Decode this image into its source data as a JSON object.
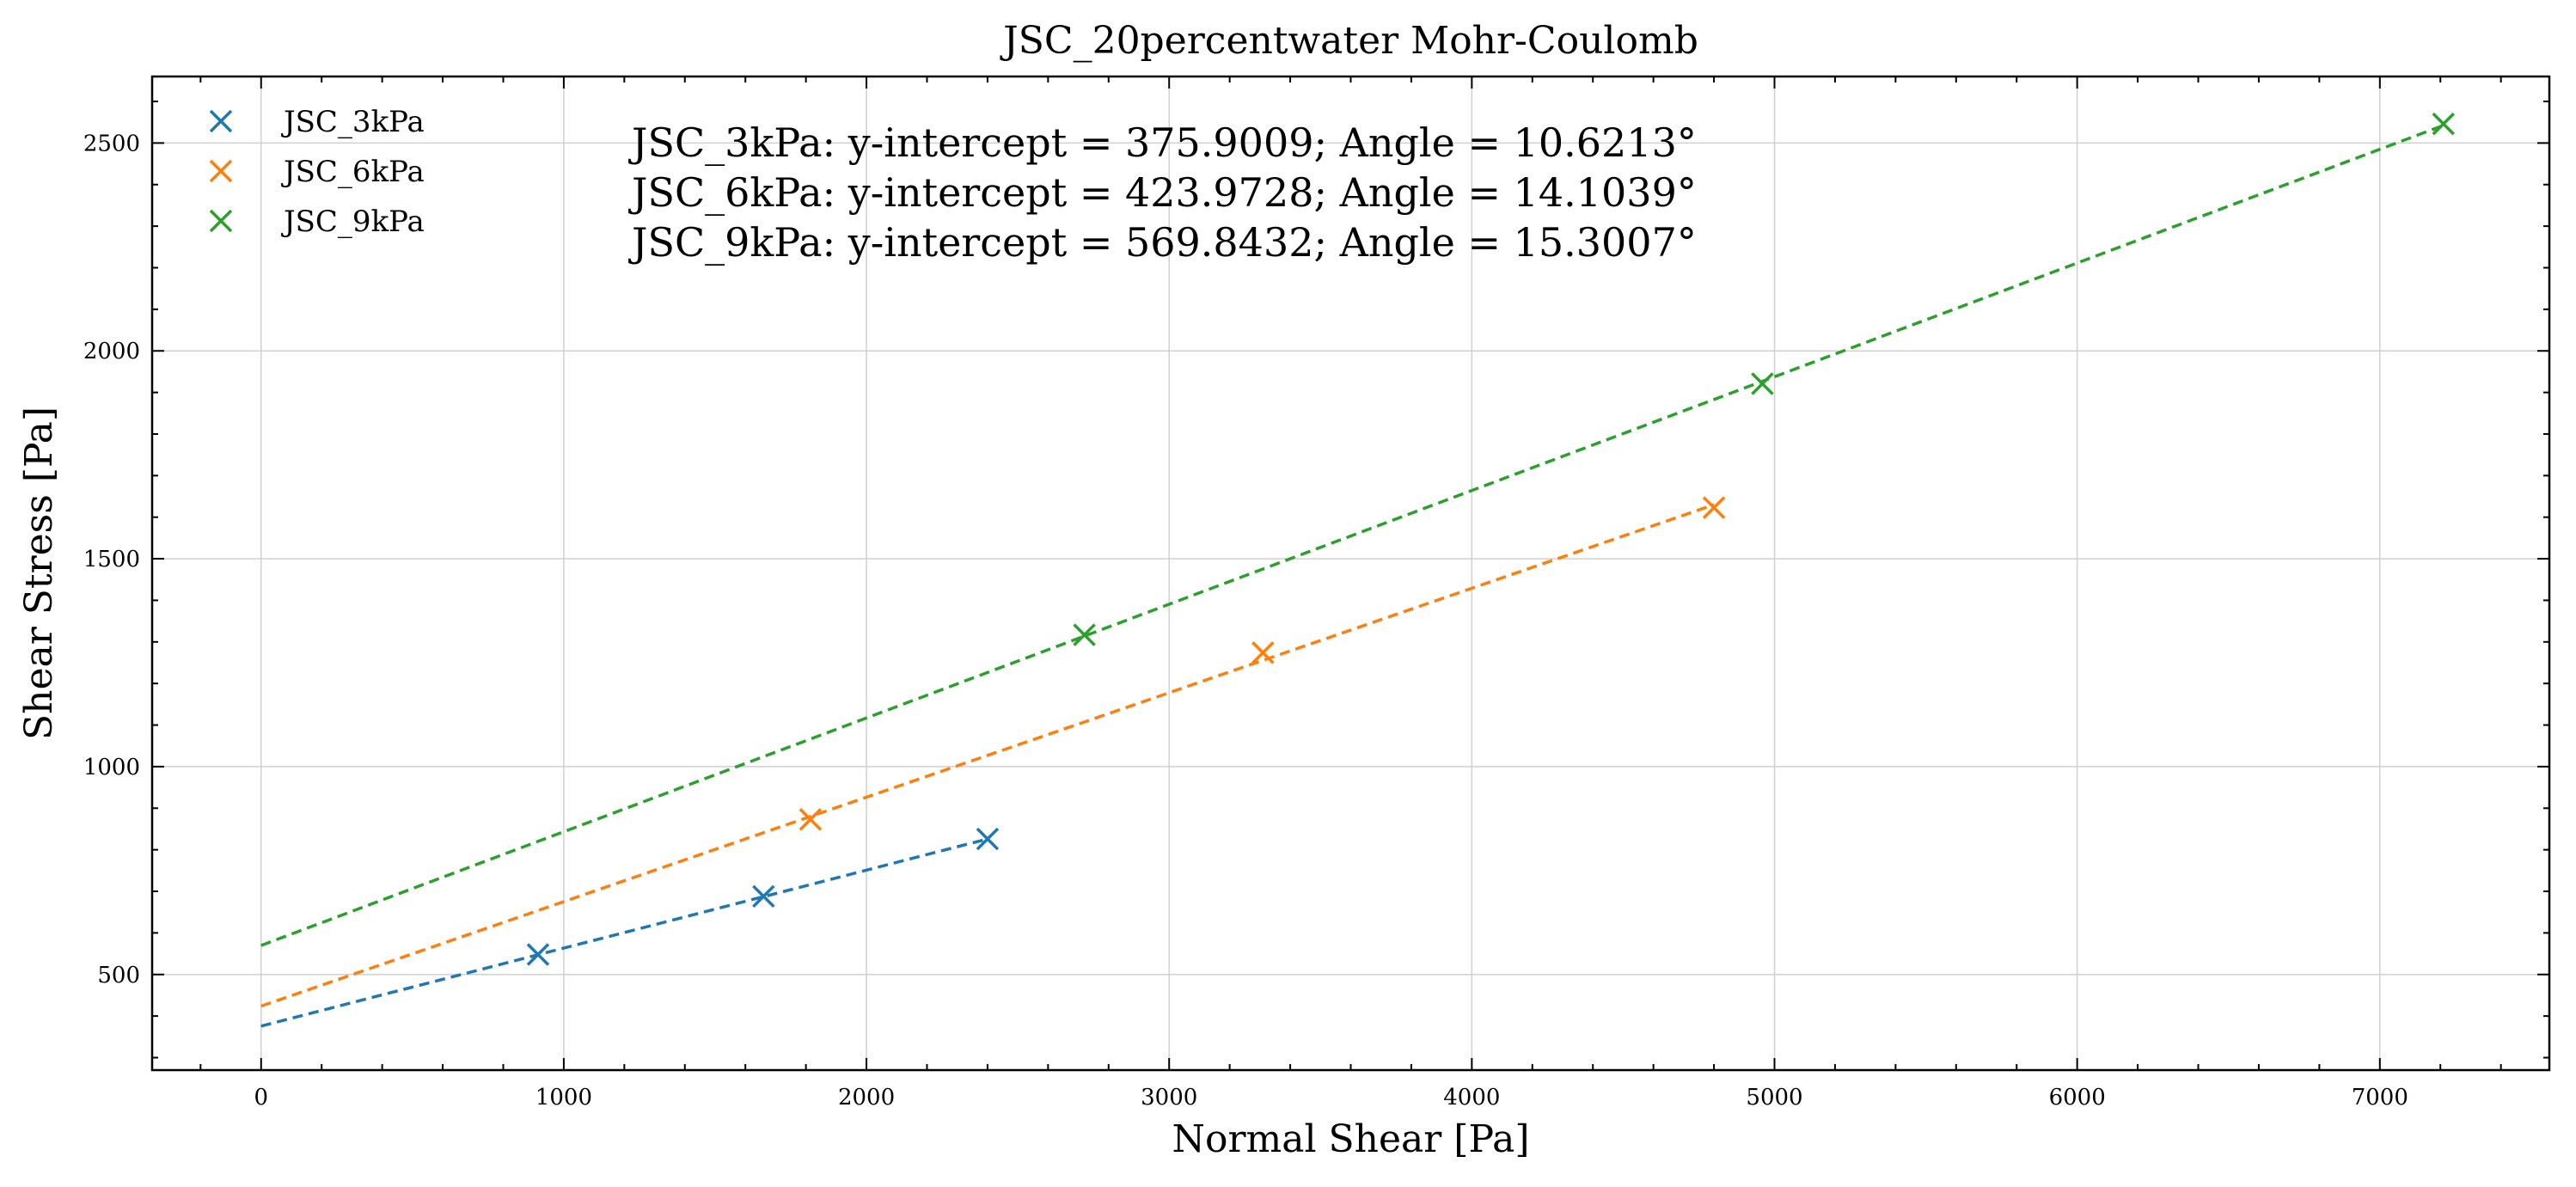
{
  "chart_data": {
    "type": "scatter",
    "title": "JSC_20percentwater Mohr-Coulomb",
    "xlabel": "Normal Shear [Pa]",
    "ylabel": "Shear Stress [Pa]",
    "xlim": [
      -360,
      7560
    ],
    "ylim": [
      270,
      2660
    ],
    "xticks": [
      0,
      1000,
      2000,
      3000,
      4000,
      5000,
      6000,
      7000
    ],
    "yticks": [
      500,
      1000,
      1500,
      2000,
      2500
    ],
    "grid": true,
    "legend_position": "top-left",
    "series": [
      {
        "name": "JSC_3kPa",
        "color": "#1f77b4",
        "marker": "x",
        "x": [
          915,
          1660,
          2400
        ],
        "y": [
          548,
          688,
          826
        ],
        "fit": {
          "x": [
            0,
            2400
          ],
          "intercept": 375.9009,
          "angle_deg": 10.6213
        }
      },
      {
        "name": "JSC_6kPa",
        "color": "#ff7f0e",
        "marker": "x",
        "x": [
          1815,
          3310,
          4800
        ],
        "y": [
          873,
          1274,
          1623
        ],
        "fit": {
          "x": [
            0,
            4800
          ],
          "intercept": 423.9728,
          "angle_deg": 14.1039
        }
      },
      {
        "name": "JSC_9kPa",
        "color": "#2ca02c",
        "marker": "x",
        "x": [
          2720,
          4960,
          7210
        ],
        "y": [
          1317,
          1921,
          2546
        ],
        "fit": {
          "x": [
            0,
            7210
          ],
          "intercept": 569.8432,
          "angle_deg": 15.3007
        }
      }
    ],
    "annotations": [
      "JSC_3kPa: y-intercept = 375.9009; Angle = 10.6213°",
      "JSC_6kPa: y-intercept = 423.9728; Angle = 14.1039°",
      "JSC_9kPa: y-intercept = 569.8432; Angle = 15.3007°"
    ]
  }
}
